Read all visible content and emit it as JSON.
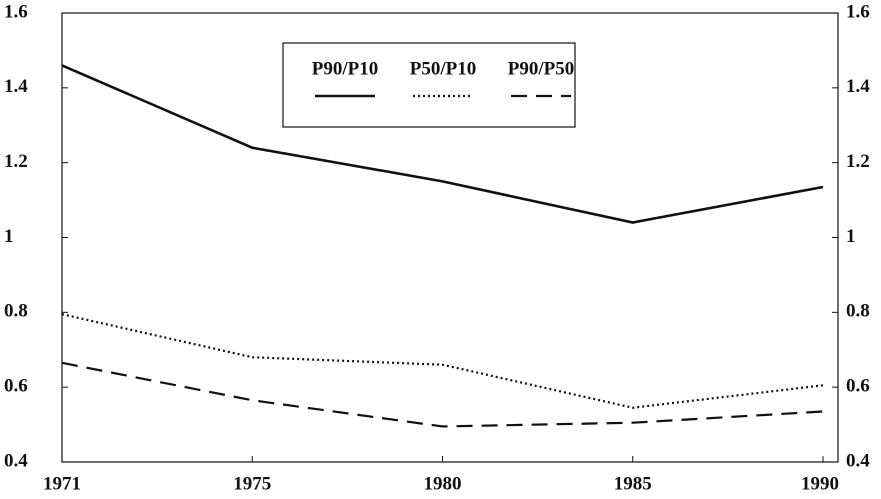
{
  "chart_data": {
    "type": "line",
    "categories": [
      "1971",
      "1975",
      "1980",
      "1985",
      "1990"
    ],
    "series": [
      {
        "name": "P90/P10",
        "color": "#111111",
        "linestyle": "solid",
        "values": [
          1.46,
          1.24,
          1.15,
          1.04,
          1.135
        ]
      },
      {
        "name": "P50/P10",
        "color": "#111111",
        "linestyle": "dotted",
        "values": [
          0.795,
          0.68,
          0.66,
          0.545,
          0.605
        ]
      },
      {
        "name": "P90/P50",
        "color": "#111111",
        "linestyle": "dashed",
        "values": [
          0.665,
          0.565,
          0.495,
          0.505,
          0.535
        ]
      }
    ],
    "ylim": [
      0.4,
      1.6
    ],
    "yticks": [
      0.4,
      0.6,
      0.8,
      1,
      1.2,
      1.4,
      1.6
    ],
    "right_axis": true
  }
}
